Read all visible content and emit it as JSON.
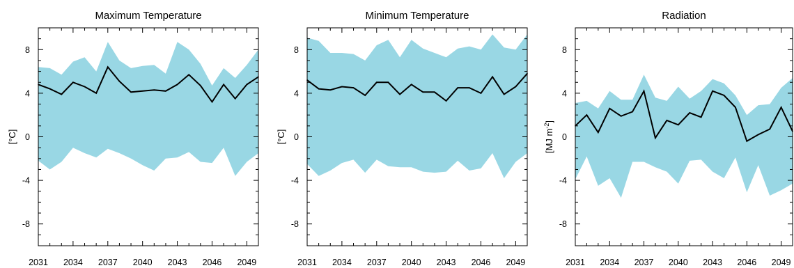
{
  "chart_data": [
    {
      "type": "area",
      "title": "Maximum Temperature",
      "ylabel": "[°C]",
      "xlabel": "",
      "xlim": [
        2031,
        2050
      ],
      "ylim": [
        -10,
        10
      ],
      "xticks": [
        2031,
        2034,
        2037,
        2040,
        2043,
        2046,
        2049
      ],
      "yticks": [
        -8,
        -4,
        0,
        4,
        8
      ],
      "band_color": "#99d7e4",
      "line_color": "#000000",
      "x": [
        2031,
        2032,
        2033,
        2034,
        2035,
        2036,
        2037,
        2038,
        2039,
        2040,
        2041,
        2042,
        2043,
        2044,
        2045,
        2046,
        2047,
        2048,
        2049,
        2050
      ],
      "mean": [
        4.8,
        4.4,
        3.9,
        5.0,
        4.6,
        4.0,
        6.4,
        5.1,
        4.1,
        4.2,
        4.3,
        4.2,
        4.8,
        5.7,
        4.7,
        3.2,
        4.8,
        3.5,
        4.8,
        5.5
      ],
      "upper": [
        6.4,
        6.3,
        5.7,
        6.9,
        7.3,
        6.0,
        8.7,
        7.0,
        6.3,
        6.5,
        6.6,
        5.8,
        8.7,
        8.0,
        6.7,
        4.7,
        6.3,
        5.4,
        6.6,
        8.0
      ],
      "lower": [
        -2.2,
        -3.0,
        -2.3,
        -1.0,
        -1.5,
        -1.9,
        -1.1,
        -1.5,
        -2.0,
        -2.6,
        -3.1,
        -2.0,
        -1.9,
        -1.4,
        -2.3,
        -2.4,
        -1.0,
        -3.6,
        -2.3,
        -1.5
      ]
    },
    {
      "type": "area",
      "title": "Minimum Temperature",
      "ylabel": "[°C]",
      "xlabel": "",
      "xlim": [
        2031,
        2050
      ],
      "ylim": [
        -10,
        10
      ],
      "xticks": [
        2031,
        2034,
        2037,
        2040,
        2043,
        2046,
        2049
      ],
      "yticks": [
        -8,
        -4,
        0,
        4,
        8
      ],
      "band_color": "#99d7e4",
      "line_color": "#000000",
      "x": [
        2031,
        2032,
        2033,
        2034,
        2035,
        2036,
        2037,
        2038,
        2039,
        2040,
        2041,
        2042,
        2043,
        2044,
        2045,
        2046,
        2047,
        2048,
        2049,
        2050
      ],
      "mean": [
        5.2,
        4.4,
        4.3,
        4.6,
        4.5,
        3.8,
        5.0,
        5.0,
        3.9,
        4.8,
        4.1,
        4.1,
        3.3,
        4.5,
        4.5,
        4.0,
        5.5,
        3.9,
        4.6,
        5.8
      ],
      "upper": [
        9.1,
        8.8,
        7.7,
        7.7,
        7.6,
        7.0,
        8.4,
        8.9,
        7.3,
        8.9,
        8.1,
        7.7,
        7.3,
        8.1,
        8.3,
        8.0,
        9.4,
        8.2,
        8.0,
        9.4
      ],
      "lower": [
        -2.5,
        -3.6,
        -3.1,
        -2.4,
        -2.1,
        -3.3,
        -2.1,
        -2.7,
        -2.8,
        -2.8,
        -3.2,
        -3.3,
        -3.2,
        -2.2,
        -3.1,
        -2.9,
        -1.5,
        -3.8,
        -2.3,
        -1.5
      ]
    },
    {
      "type": "area",
      "title": "Radiation",
      "ylabel": "[MJ m",
      "ylabel_sup": "-2",
      "ylabel_end": "]",
      "xlabel": "",
      "xlim": [
        2031,
        2050
      ],
      "ylim": [
        -10,
        10
      ],
      "xticks": [
        2031,
        2034,
        2037,
        2040,
        2043,
        2046,
        2049
      ],
      "yticks": [
        -8,
        -4,
        0,
        4,
        8
      ],
      "band_color": "#99d7e4",
      "line_color": "#000000",
      "x": [
        2031,
        2032,
        2033,
        2034,
        2035,
        2036,
        2037,
        2038,
        2039,
        2040,
        2041,
        2042,
        2043,
        2044,
        2045,
        2046,
        2047,
        2048,
        2049,
        2050
      ],
      "mean": [
        1.0,
        2.0,
        0.4,
        2.6,
        1.9,
        2.3,
        4.2,
        -0.1,
        1.5,
        1.1,
        2.2,
        1.8,
        4.2,
        3.8,
        2.7,
        -0.4,
        0.2,
        0.7,
        2.7,
        0.5
      ],
      "upper": [
        3.1,
        3.3,
        2.6,
        4.2,
        3.4,
        3.4,
        5.7,
        3.6,
        3.3,
        4.6,
        3.5,
        4.2,
        5.3,
        4.9,
        3.8,
        2.0,
        2.9,
        3.0,
        4.5,
        5.4
      ],
      "lower": [
        -3.9,
        -1.8,
        -4.5,
        -3.8,
        -5.6,
        -2.3,
        -2.3,
        -2.8,
        -3.2,
        -4.3,
        -2.2,
        -2.1,
        -3.2,
        -3.8,
        -1.9,
        -5.1,
        -2.6,
        -5.4,
        -4.9,
        -4.3
      ]
    }
  ]
}
